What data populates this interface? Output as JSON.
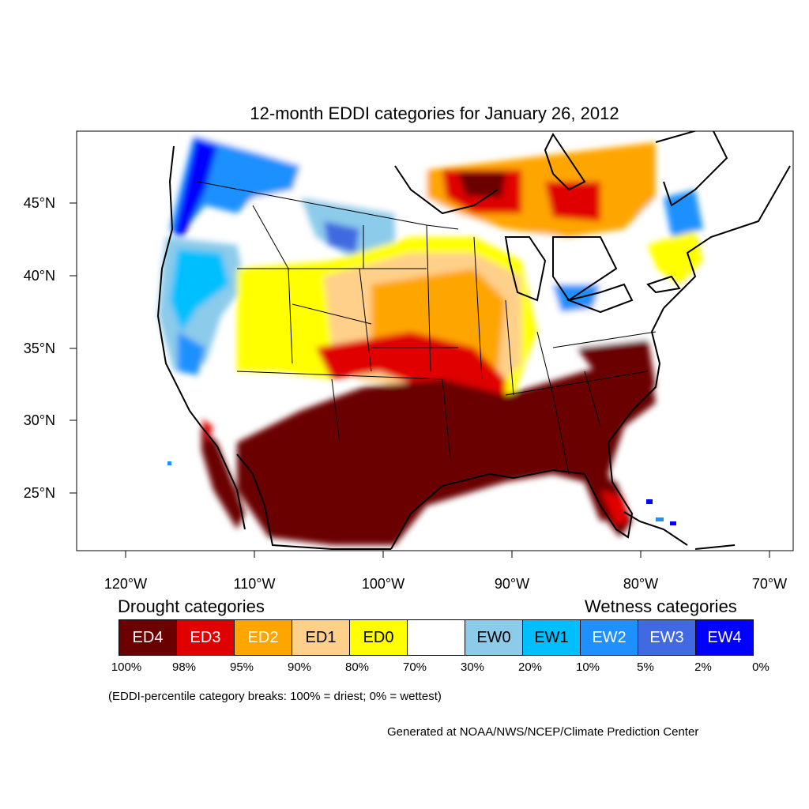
{
  "title": "12-month EDDI categories for January 26, 2012",
  "axes": {
    "lon_ticks": [
      "120°W",
      "110°W",
      "100°W",
      "90°W",
      "80°W",
      "70°W"
    ],
    "lat_ticks": [
      "45°N",
      "40°N",
      "35°N",
      "30°N",
      "25°N"
    ]
  },
  "legend": {
    "drought_heading": "Drought categories",
    "wetness_heading": "Wetness categories",
    "categories": [
      {
        "label": "ED4",
        "color": "#6b0000",
        "text_color": "#ffffff"
      },
      {
        "label": "ED3",
        "color": "#e00000",
        "text_color": "#ffffff"
      },
      {
        "label": "ED2",
        "color": "#ffa500",
        "text_color": "#ffffff"
      },
      {
        "label": "ED1",
        "color": "#ffd08a",
        "text_color": "#000000"
      },
      {
        "label": "ED0",
        "color": "#ffff00",
        "text_color": "#000000"
      },
      {
        "label": "",
        "color": "#ffffff",
        "text_color": "#000000"
      },
      {
        "label": "EW0",
        "color": "#8ccbea",
        "text_color": "#000000"
      },
      {
        "label": "EW1",
        "color": "#00bfff",
        "text_color": "#000000"
      },
      {
        "label": "EW2",
        "color": "#1e90ff",
        "text_color": "#ffffff"
      },
      {
        "label": "EW3",
        "color": "#4169e1",
        "text_color": "#ffffff"
      },
      {
        "label": "EW4",
        "color": "#0000ff",
        "text_color": "#ffffff"
      }
    ],
    "breaks": [
      "100%",
      "98%",
      "95%",
      "90%",
      "80%",
      "70%",
      "30%",
      "20%",
      "10%",
      "5%",
      "2%",
      "0%"
    ]
  },
  "footnote": "(EDDI-percentile category breaks: 100% = driest; 0% = wettest)",
  "credit": "Generated at NOAA/NWS/NCEP/Climate Prediction Center"
}
